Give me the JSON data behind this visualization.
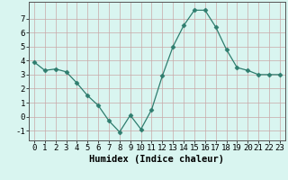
{
  "x": [
    0,
    1,
    2,
    3,
    4,
    5,
    6,
    7,
    8,
    9,
    10,
    11,
    12,
    13,
    14,
    15,
    16,
    17,
    18,
    19,
    20,
    21,
    22,
    23
  ],
  "y": [
    3.9,
    3.3,
    3.4,
    3.2,
    2.4,
    1.5,
    0.8,
    -0.3,
    -1.1,
    0.1,
    -0.9,
    0.5,
    2.9,
    5.0,
    6.5,
    7.6,
    7.6,
    6.4,
    4.8,
    3.5,
    3.3,
    3.0,
    3.0,
    3.0
  ],
  "line_color": "#2e7d6e",
  "marker": "D",
  "marker_size": 2.5,
  "bg_color": "#d9f5f0",
  "grid_color": "#c8a8a8",
  "xlabel": "Humidex (Indice chaleur)",
  "xlim": [
    -0.5,
    23.5
  ],
  "ylim": [
    -1.7,
    8.2
  ],
  "xticks": [
    0,
    1,
    2,
    3,
    4,
    5,
    6,
    7,
    8,
    9,
    10,
    11,
    12,
    13,
    14,
    15,
    16,
    17,
    18,
    19,
    20,
    21,
    22,
    23
  ],
  "yticks": [
    -1,
    0,
    1,
    2,
    3,
    4,
    5,
    6,
    7
  ],
  "xlabel_fontsize": 7.5,
  "tick_fontsize": 6.5
}
